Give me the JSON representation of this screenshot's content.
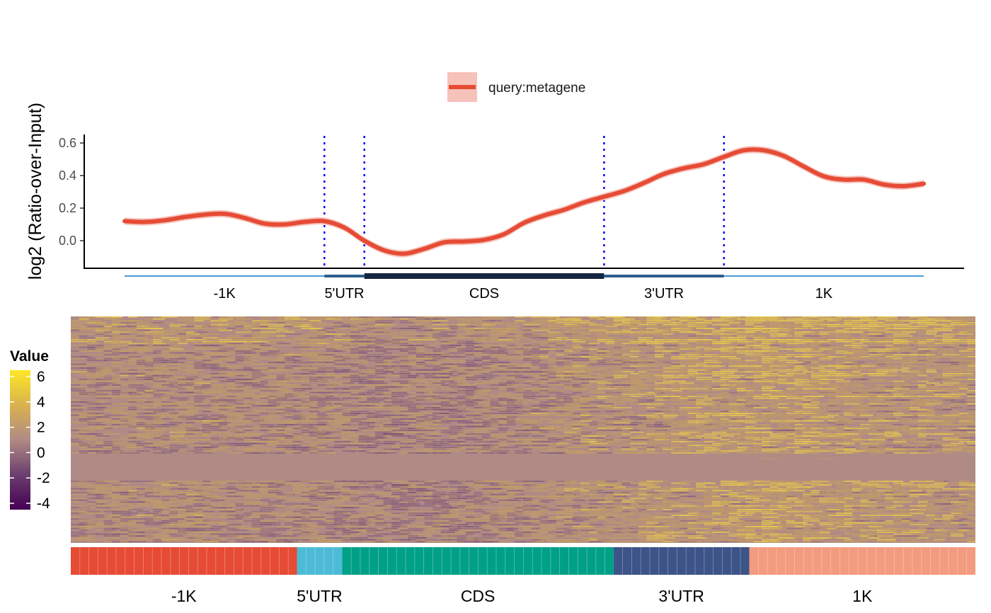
{
  "chart_data": [
    {
      "type": "line",
      "title": "",
      "xlabel": "",
      "ylabel": "log2 (Ratio-over-Input)",
      "yticks": [
        0.0,
        0.2,
        0.4,
        0.6
      ],
      "ytick_labels": [
        "0.0",
        "0.2",
        "0.4",
        "0.6"
      ],
      "ylim": [
        -0.165,
        0.65
      ],
      "xlim": [
        0,
        100
      ],
      "legend": {
        "placement": "top",
        "entries": [
          "query:metagene"
        ]
      },
      "series": [
        {
          "name": "query:metagene",
          "color": "#E64B35",
          "band_color": "#F6C2B9",
          "band_halfwidth": 0.022,
          "x": [
            0,
            2.5,
            5,
            7.5,
            10,
            12.5,
            15,
            17.5,
            20,
            22.5,
            25,
            27.5,
            30,
            32.5,
            35,
            37.5,
            40,
            42.5,
            45,
            47.5,
            50,
            52.5,
            55,
            57.5,
            60,
            62.5,
            65,
            67.5,
            70,
            72.5,
            75,
            77.5,
            80,
            82.5,
            85,
            87.5,
            90,
            92.5,
            95,
            97.5,
            100
          ],
          "y": [
            0.12,
            0.115,
            0.125,
            0.145,
            0.16,
            0.165,
            0.14,
            0.105,
            0.1,
            0.115,
            0.12,
            0.08,
            0.0,
            -0.06,
            -0.08,
            -0.05,
            -0.01,
            -0.005,
            0.005,
            0.04,
            0.11,
            0.155,
            0.19,
            0.235,
            0.27,
            0.305,
            0.355,
            0.41,
            0.445,
            0.47,
            0.515,
            0.555,
            0.555,
            0.52,
            0.455,
            0.395,
            0.375,
            0.375,
            0.345,
            0.335,
            0.35
          ]
        }
      ],
      "boundaries": [
        25,
        30,
        60,
        75
      ],
      "boundary_color": "#0000FF",
      "gene_model": {
        "segments": [
          {
            "label": "-1K",
            "start": 0,
            "end": 25,
            "color": "#4B9AD8",
            "weight": "thin"
          },
          {
            "label": "5'UTR",
            "start": 25,
            "end": 30,
            "color": "#2C5D8F",
            "weight": "medium"
          },
          {
            "label": "CDS",
            "start": 30,
            "end": 60,
            "color": "#14263F",
            "weight": "thick"
          },
          {
            "label": "3'UTR",
            "start": 60,
            "end": 75,
            "color": "#2C5D8F",
            "weight": "medium"
          },
          {
            "label": "1K",
            "start": 75,
            "end": 100,
            "color": "#4B9AD8",
            "weight": "thin"
          }
        ]
      }
    },
    {
      "type": "heatmap",
      "title": "",
      "colorbar": {
        "title": "Value",
        "ticks": [
          6,
          4,
          2,
          0,
          -2,
          -4
        ],
        "tick_labels": [
          "6",
          "4",
          "2",
          "0",
          "-2",
          "-4"
        ],
        "range": [
          -4.5,
          6.5
        ],
        "colors": [
          "#440154",
          "#6B3E6E",
          "#B08A85",
          "#D9B24E",
          "#FDE725"
        ]
      },
      "annotation_bar": [
        {
          "label": "-1K",
          "start": 0,
          "end": 25,
          "color": "#E64B35"
        },
        {
          "label": "5'UTR",
          "start": 25,
          "end": 30,
          "color": "#4DBBD5"
        },
        {
          "label": "CDS",
          "start": 30,
          "end": 60,
          "color": "#00A087"
        },
        {
          "label": "3'UTR",
          "start": 60,
          "end": 75,
          "color": "#3C5488"
        },
        {
          "label": "1K",
          "start": 75,
          "end": 100,
          "color": "#F39B7F"
        }
      ]
    }
  ]
}
